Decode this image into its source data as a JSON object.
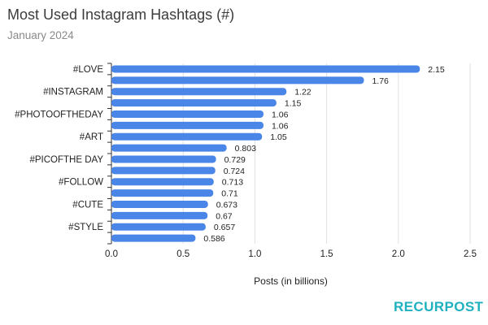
{
  "title": "Most Used Instagram Hashtags (#)",
  "subtitle": "January 2024",
  "logo": {
    "part1": "RECUR",
    "part2": "POST"
  },
  "colors": {
    "bar": "#4a86e8",
    "grid": "#e0e0e0",
    "text": "#222222",
    "logo": "#1fb1bf"
  },
  "chart_data": {
    "type": "bar",
    "orientation": "horizontal",
    "title": "Most Used Instagram Hashtags (#)",
    "subtitle": "January 2024",
    "categories": [
      "#LOVE",
      "",
      "#INSTAGRAM",
      "",
      "#PHOTOOFTHEDAY",
      "",
      "#ART",
      "",
      "#PICOFTHE DAY",
      "",
      "#FOLLOW",
      "",
      "#CUTE",
      "",
      "#STYLE",
      ""
    ],
    "values": [
      2.15,
      1.76,
      1.22,
      1.15,
      1.06,
      1.06,
      1.05,
      0.803,
      0.729,
      0.724,
      0.713,
      0.71,
      0.673,
      0.67,
      0.657,
      0.586
    ],
    "data_labels": [
      "2.15",
      "1.76",
      "1.22",
      "1.15",
      "1.06",
      "1.06",
      "1.05",
      "0.803",
      "0.729",
      "0.724",
      "0.713",
      "0.71",
      "0.673",
      "0.67",
      "0.657",
      "0.586"
    ],
    "xlabel": "Posts (in billions)",
    "ylabel": "",
    "xlim": [
      0,
      2.5
    ],
    "xticks": [
      "0.0",
      "0.5",
      "1.0",
      "1.5",
      "2.0",
      "2.5"
    ],
    "grid": true,
    "legend": "none"
  }
}
